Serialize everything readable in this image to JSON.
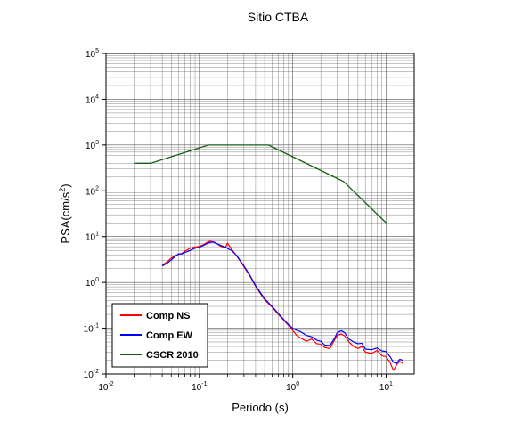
{
  "chart_data": {
    "type": "line",
    "title": "Sitio CTBA",
    "xlabel": "Periodo (s)",
    "ylabel_main": "PSA(cm/s",
    "ylabel_exp": "2",
    "ylabel_close": ")",
    "x_scale": "log",
    "y_scale": "log",
    "xlim": [
      0.01,
      20
    ],
    "ylim": [
      0.01,
      100000
    ],
    "grid": true,
    "x_ticks": [
      {
        "value": 0.01,
        "base": "10",
        "exp": "-2"
      },
      {
        "value": 0.1,
        "base": "10",
        "exp": "-1"
      },
      {
        "value": 1,
        "base": "10",
        "exp": "0"
      },
      {
        "value": 10,
        "base": "10",
        "exp": "1"
      }
    ],
    "y_ticks": [
      {
        "value": 0.01,
        "base": "10",
        "exp": "-2"
      },
      {
        "value": 0.1,
        "base": "10",
        "exp": "-1"
      },
      {
        "value": 1,
        "base": "10",
        "exp": "0"
      },
      {
        "value": 10,
        "base": "10",
        "exp": "1"
      },
      {
        "value": 100,
        "base": "10",
        "exp": "2"
      },
      {
        "value": 1000,
        "base": "10",
        "exp": "3"
      },
      {
        "value": 10000,
        "base": "10",
        "exp": "4"
      },
      {
        "value": 100000,
        "base": "10",
        "exp": "5"
      }
    ],
    "legend_position": "bottom-left",
    "series": [
      {
        "name": "Comp NS",
        "color": "#ff0000",
        "x": [
          0.04,
          0.045,
          0.05,
          0.055,
          0.06,
          0.065,
          0.07,
          0.08,
          0.09,
          0.1,
          0.11,
          0.12,
          0.13,
          0.14,
          0.15,
          0.17,
          0.19,
          0.2,
          0.22,
          0.25,
          0.3,
          0.35,
          0.4,
          0.5,
          0.6,
          0.7,
          0.8,
          0.9,
          1.0,
          1.1,
          1.2,
          1.4,
          1.6,
          1.8,
          2.0,
          2.2,
          2.5,
          2.8,
          3.0,
          3.3,
          3.6,
          4.0,
          4.5,
          5.0,
          5.5,
          6.0,
          7.0,
          8.0,
          9.0,
          10.0,
          11.0,
          12.0,
          13.0,
          14.0,
          15.0
        ],
        "y": [
          2.4,
          2.8,
          3.4,
          3.8,
          4.1,
          4.3,
          4.8,
          5.6,
          5.9,
          6.1,
          6.6,
          7.4,
          8.0,
          7.7,
          7.3,
          6.1,
          5.7,
          7.2,
          5.4,
          3.8,
          2.2,
          1.35,
          0.82,
          0.42,
          0.29,
          0.2,
          0.15,
          0.115,
          0.09,
          0.07,
          0.062,
          0.052,
          0.058,
          0.046,
          0.045,
          0.038,
          0.036,
          0.055,
          0.07,
          0.075,
          0.068,
          0.05,
          0.04,
          0.036,
          0.04,
          0.03,
          0.028,
          0.033,
          0.025,
          0.024,
          0.018,
          0.012,
          0.016,
          0.019,
          0.017
        ]
      },
      {
        "name": "Comp EW",
        "color": "#0000ff",
        "x": [
          0.04,
          0.045,
          0.05,
          0.055,
          0.06,
          0.065,
          0.07,
          0.08,
          0.09,
          0.1,
          0.11,
          0.12,
          0.13,
          0.14,
          0.15,
          0.17,
          0.19,
          0.2,
          0.22,
          0.25,
          0.3,
          0.35,
          0.4,
          0.5,
          0.6,
          0.7,
          0.8,
          0.9,
          1.0,
          1.1,
          1.2,
          1.4,
          1.6,
          1.8,
          2.0,
          2.2,
          2.5,
          2.8,
          3.0,
          3.3,
          3.6,
          4.0,
          4.5,
          5.0,
          5.5,
          6.0,
          7.0,
          8.0,
          9.0,
          10.0,
          11.0,
          12.0,
          13.0,
          14.0,
          15.0
        ],
        "y": [
          2.3,
          2.6,
          3.1,
          3.7,
          4.2,
          4.2,
          4.5,
          5.0,
          5.6,
          5.8,
          6.4,
          7.0,
          7.5,
          7.6,
          7.2,
          6.4,
          5.9,
          5.5,
          5.0,
          3.9,
          2.3,
          1.4,
          0.85,
          0.44,
          0.3,
          0.21,
          0.155,
          0.12,
          0.1,
          0.09,
          0.085,
          0.07,
          0.065,
          0.055,
          0.052,
          0.043,
          0.042,
          0.06,
          0.08,
          0.088,
          0.08,
          0.058,
          0.05,
          0.046,
          0.047,
          0.035,
          0.034,
          0.037,
          0.032,
          0.031,
          0.024,
          0.018,
          0.017,
          0.021,
          0.02
        ]
      },
      {
        "name": "CSCR 2010",
        "color": "#1a5c1a",
        "x": [
          0.02,
          0.03,
          0.125,
          0.55,
          3.5,
          10
        ],
        "y": [
          400,
          400,
          1000,
          1000,
          160,
          20
        ]
      }
    ]
  }
}
